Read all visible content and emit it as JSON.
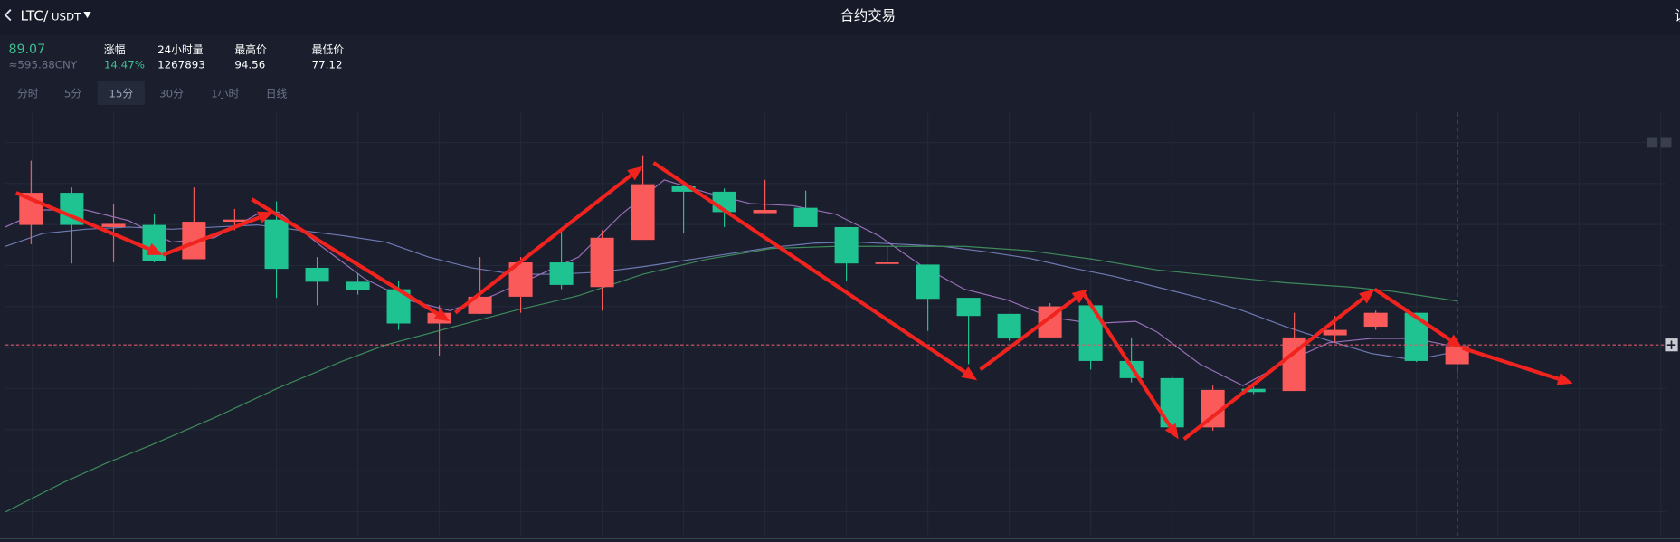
{
  "header": {
    "pair": "LTC/",
    "quote": "USDT",
    "title": "合约交易",
    "right_cut": "设"
  },
  "stats": {
    "price": "89.07",
    "cny": "≈595.88CNY",
    "items": [
      {
        "label": "涨幅",
        "value": "14.47%"
      },
      {
        "label": "24小时量",
        "value": "1267893"
      },
      {
        "label": "最高价",
        "value": "94.56"
      },
      {
        "label": "最低价",
        "value": "77.12"
      }
    ]
  },
  "tabs": [
    "分时",
    "5分",
    "15分",
    "30分",
    "1小时",
    "日线"
  ],
  "active_tab": 2
}
